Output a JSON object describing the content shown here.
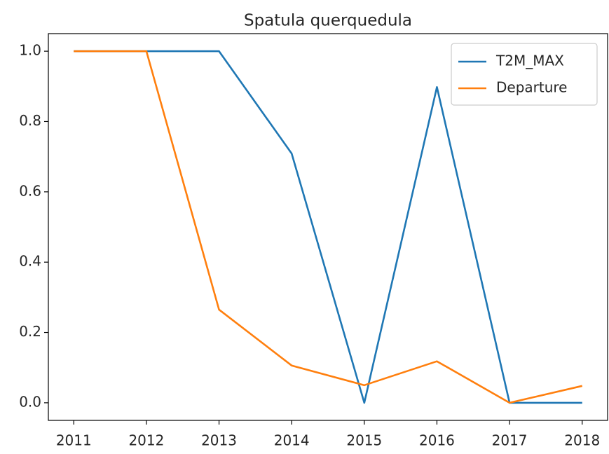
{
  "chart_data": {
    "type": "line",
    "title": "Spatula querquedula",
    "x": [
      2011,
      2012,
      2013,
      2014,
      2015,
      2016,
      2017,
      2018
    ],
    "series": [
      {
        "name": "T2M_MAX",
        "color": "#1f77b4",
        "values": [
          1.0,
          1.0,
          1.0,
          0.709,
          0.0,
          0.898,
          0.0,
          0.0
        ]
      },
      {
        "name": "Departure",
        "color": "#ff7f0e",
        "values": [
          1.0,
          1.0,
          0.265,
          0.106,
          0.05,
          0.118,
          0.0,
          0.048
        ]
      }
    ],
    "xlim": [
      2010.65,
      2018.35
    ],
    "xticks": [
      2011,
      2012,
      2013,
      2014,
      2015,
      2016,
      2017,
      2018
    ],
    "ylim": [
      -0.05,
      1.05
    ],
    "yticks": [
      {
        "value": 0,
        "label": "0.0"
      },
      {
        "value": 0.2,
        "label": "0.2"
      },
      {
        "value": 0.4,
        "label": "0.4"
      },
      {
        "value": 0.6,
        "label": "0.6"
      },
      {
        "value": 0.8,
        "label": "0.8"
      },
      {
        "value": 1,
        "label": "1.0"
      }
    ],
    "grid": false,
    "legend": "upper right"
  }
}
